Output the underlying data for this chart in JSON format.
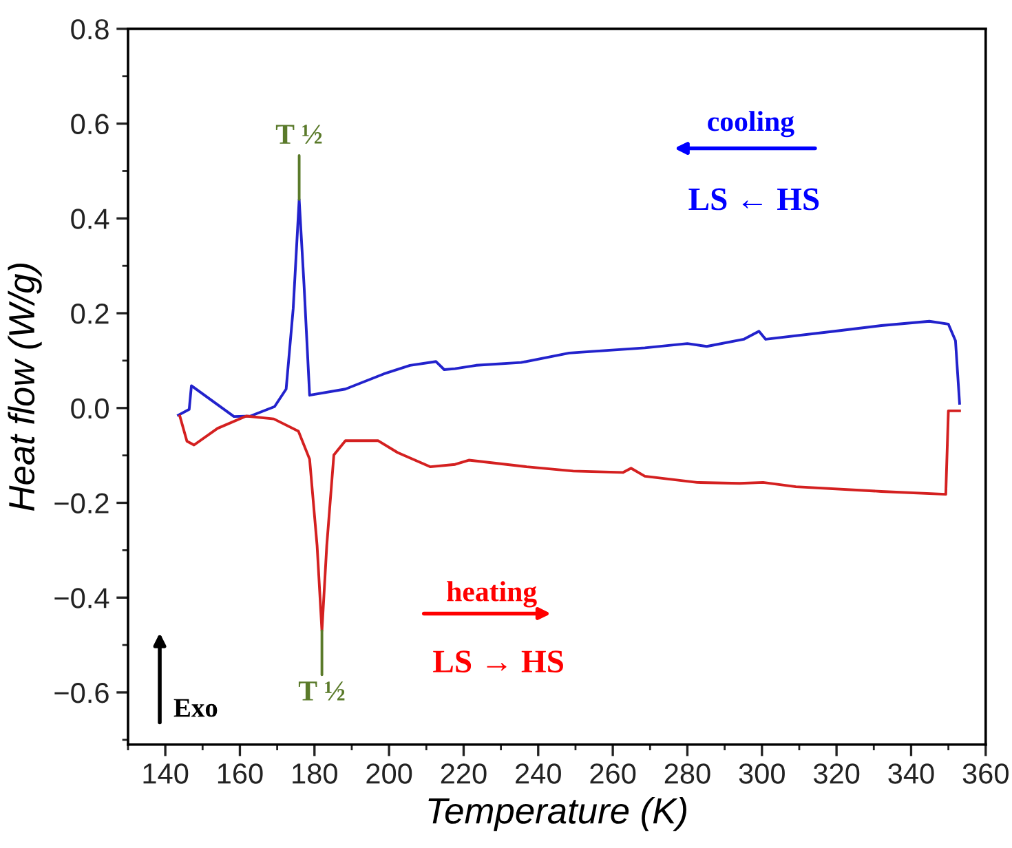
{
  "chart_data": {
    "type": "line",
    "xlabel": "Temperature (K)",
    "ylabel": "Heat flow (W/g)",
    "xlim": [
      130,
      360
    ],
    "xticks": [
      140,
      160,
      180,
      200,
      220,
      240,
      260,
      280,
      300,
      320,
      340,
      360
    ],
    "ylim": [
      -0.71,
      0.8
    ],
    "yticks": [
      {
        "value": -0.6,
        "label": "−0.6"
      },
      {
        "value": -0.4,
        "label": "−0.4"
      },
      {
        "value": -0.2,
        "label": "−0.2"
      },
      {
        "value": 0.0,
        "label": "0.0"
      },
      {
        "value": 0.2,
        "label": "0.2"
      },
      {
        "value": 0.4,
        "label": "0.4"
      },
      {
        "value": 0.6,
        "label": "0.6"
      },
      {
        "value": 0.8,
        "label": "0.8"
      }
    ],
    "grid": false,
    "series": [
      {
        "color": "#2222cc",
        "x": [
          143.5,
          146.4,
          147.0,
          158.4,
          162.8,
          169.3,
          172.4,
          174.3,
          175.9,
          177.2,
          178.7,
          188.3,
          198.6,
          205.6,
          212.6,
          214.8,
          217.7,
          223.3,
          235.4,
          248.3,
          268.6,
          280.0,
          285.2,
          295.1,
          299.2,
          301.0,
          319.4,
          332.0,
          344.9,
          350.0,
          351.9,
          353.0
        ],
        "values": [
          -0.015,
          -0.003,
          0.047,
          -0.018,
          -0.017,
          0.003,
          0.04,
          0.21,
          0.44,
          0.26,
          0.027,
          0.04,
          0.072,
          0.09,
          0.098,
          0.081,
          0.083,
          0.09,
          0.096,
          0.116,
          0.127,
          0.136,
          0.13,
          0.145,
          0.162,
          0.145,
          0.162,
          0.174,
          0.183,
          0.177,
          0.142,
          0.01
        ]
      },
      {
        "color": "#d42020",
        "x": [
          143.9,
          145.8,
          147.7,
          154.0,
          161.7,
          169.1,
          175.7,
          178.7,
          180.7,
          182.0,
          183.3,
          185.2,
          188.3,
          197.1,
          202.3,
          211.1,
          217.7,
          221.4,
          236.9,
          249.4,
          262.7,
          264.9,
          268.6,
          282.6,
          294.0,
          300.3,
          309.1,
          332.0,
          349.3,
          350.0,
          353.0
        ],
        "values": [
          -0.017,
          -0.07,
          -0.078,
          -0.043,
          -0.017,
          -0.023,
          -0.049,
          -0.108,
          -0.29,
          -0.47,
          -0.29,
          -0.099,
          -0.069,
          -0.069,
          -0.094,
          -0.124,
          -0.119,
          -0.11,
          -0.124,
          -0.133,
          -0.136,
          -0.127,
          -0.144,
          -0.157,
          -0.159,
          -0.157,
          -0.166,
          -0.176,
          -0.182,
          -0.006,
          -0.006
        ]
      }
    ],
    "annotations": [
      {
        "text": "T ½",
        "x": 175.9,
        "y": 0.44
      },
      {
        "text": "T ½",
        "x": 182.0,
        "y": -0.47
      },
      "cooling",
      "LS ← HS",
      "heating",
      "LS → HS",
      "Exo"
    ]
  }
}
